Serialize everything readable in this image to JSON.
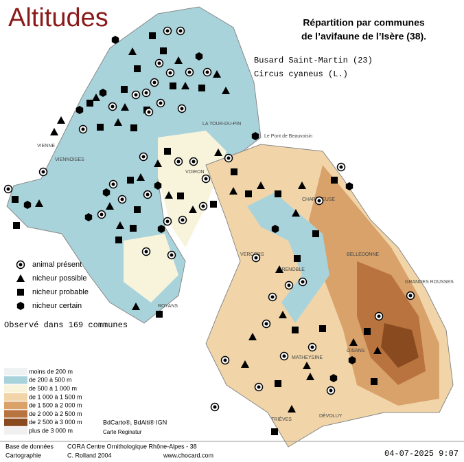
{
  "header": {
    "title": "Altitudes",
    "heading_1": "Répartition par communes",
    "heading_2": "de l’avifaune de l’Isère (38).",
    "species": "Busard Saint-Martin  (23)",
    "latin": "Circus cyaneus (L.)"
  },
  "legend": {
    "items": [
      "animal présent",
      "nicheur possible",
      "nicheur probable",
      "nicheur certain"
    ],
    "observed": "Observé dans 169 communes"
  },
  "altitudes": {
    "items": [
      "moins de 200 m",
      "de 200 à 500 m",
      "de 500 à 1 000 m",
      "de 1 000 à 1 500 m",
      "de 1 500 à 2 000 m",
      "de 2 000 à 2 500 m",
      "de 2 500 à 3 000 m",
      "plus de 3 000 m"
    ]
  },
  "places": [
    "VIENNE",
    "LA TOUR-DU-PIN",
    "Le Pont de Beauvoisin",
    "VOIRON",
    "GRENOBLE",
    "VIENNOISES",
    "ROYANS",
    "VERCORS",
    "BELLEDONNE",
    "CHARTREUSE",
    "TRIÈVES",
    "DÉVOLUY",
    "OISANS",
    "GRANDES ROUSSES",
    "MATHEYSINE"
  ],
  "credits": {
    "source": "BdCarto®, BdAlti® IGN",
    "map": "Carte Reginatur",
    "db_label": "Base de données",
    "db": "CORA Centre Ornithologique Rhône-Alpes - 38",
    "carto_label": "Cartographie",
    "carto": "C. Rolland 2004",
    "site": "www.chocard.com",
    "date": "04-07-2025 9:07"
  }
}
